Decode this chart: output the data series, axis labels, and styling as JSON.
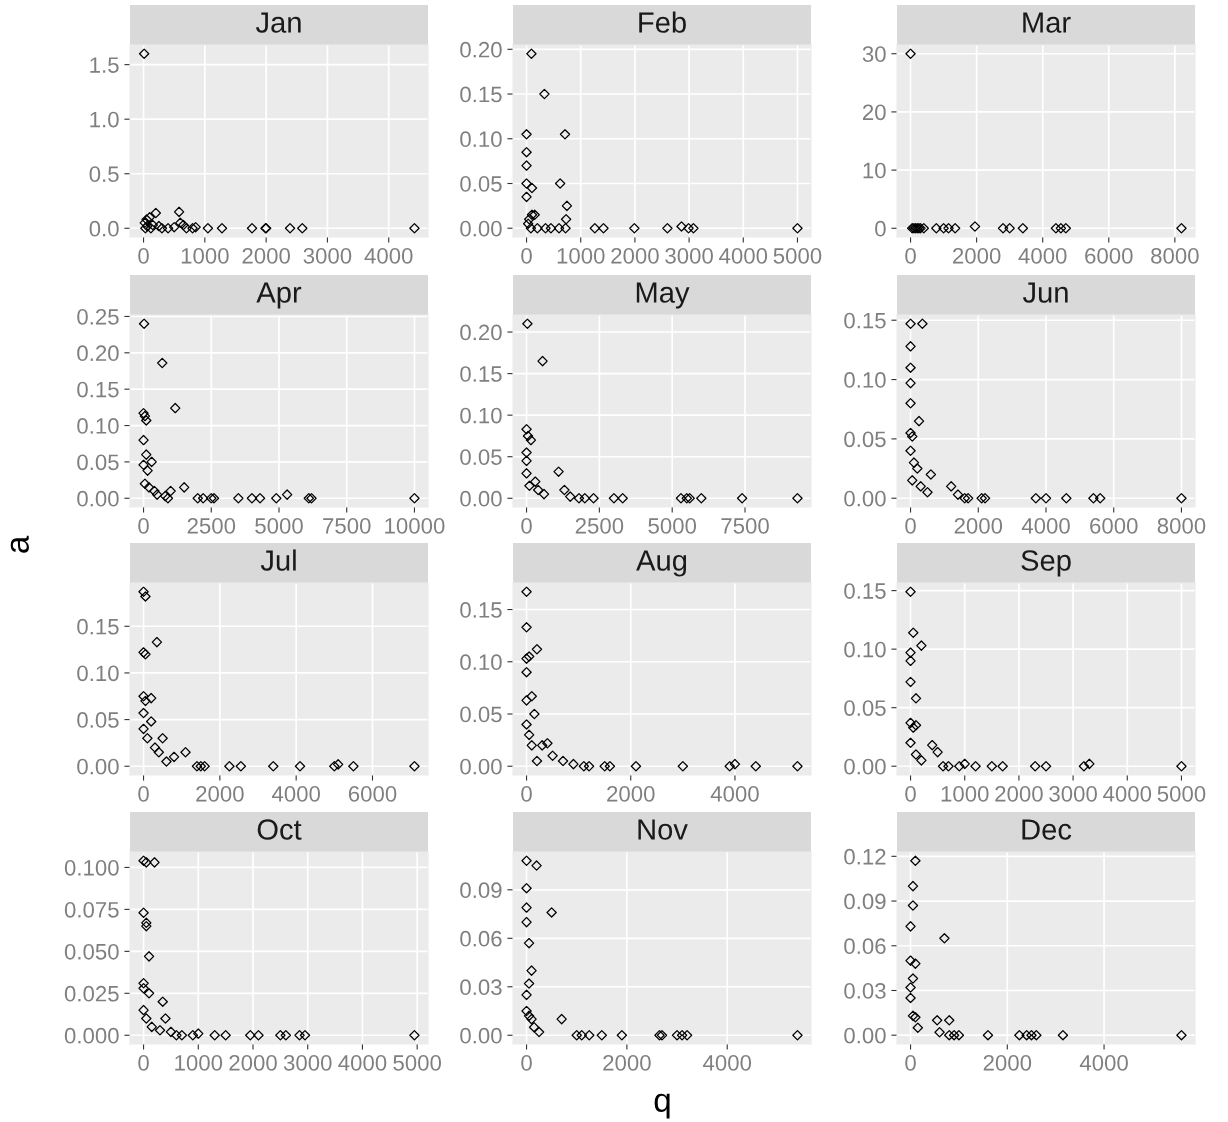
{
  "chart_data": [
    {
      "type": "scatter",
      "title": "Jan",
      "marker": "diamond",
      "color": "#000000",
      "grid": true,
      "xlim": [
        -221,
        4641
      ],
      "ylim": [
        -0.08,
        1.68
      ],
      "xticks": [
        0,
        1000,
        2000,
        3000,
        4000
      ],
      "yticks": [
        {
          "value": 0,
          "label": "0.0"
        },
        {
          "value": 0.5,
          "label": "0.5"
        },
        {
          "value": 1,
          "label": "1.0"
        },
        {
          "value": 1.5,
          "label": "1.5"
        }
      ],
      "x": [
        10,
        20,
        50,
        100,
        150,
        200,
        250,
        300,
        400,
        500,
        580,
        600,
        650,
        700,
        800,
        850,
        1050,
        1280,
        1770,
        1990,
        2000,
        2390,
        2590,
        4420,
        30,
        60,
        120
      ],
      "values": [
        1.6,
        0.05,
        0.08,
        0.1,
        0.03,
        0.14,
        0.02,
        0,
        0,
        0.01,
        0.15,
        0.05,
        0.03,
        0,
        0,
        0.01,
        0,
        0,
        0,
        0,
        0,
        0,
        0,
        0,
        0,
        0.02,
        0
      ]
    },
    {
      "type": "scatter",
      "title": "Feb",
      "marker": "diamond",
      "color": "#000000",
      "grid": true,
      "xlim": [
        -250,
        5250
      ],
      "ylim": [
        -0.0098,
        0.2048
      ],
      "xticks": [
        0,
        1000,
        2000,
        3000,
        4000,
        5000
      ],
      "yticks": [
        {
          "value": 0,
          "label": "0.00"
        },
        {
          "value": 0.05,
          "label": "0.05"
        },
        {
          "value": 0.1,
          "label": "0.10"
        },
        {
          "value": 0.15,
          "label": "0.15"
        },
        {
          "value": 0.2,
          "label": "0.20"
        }
      ],
      "x": [
        90,
        330,
        0,
        710,
        0,
        0,
        0,
        620,
        100,
        0,
        745,
        730,
        50,
        100,
        150,
        30,
        80,
        200,
        350,
        450,
        600,
        720,
        1260,
        1420,
        1990,
        2600,
        2860,
        2990,
        3080,
        5000
      ],
      "values": [
        0.195,
        0.15,
        0.105,
        0.105,
        0.085,
        0.07,
        0.05,
        0.05,
        0.045,
        0.035,
        0.025,
        0.01,
        0.01,
        0.015,
        0.015,
        0.005,
        0,
        0,
        0,
        0,
        0,
        0,
        0,
        0,
        0,
        0,
        0.002,
        0,
        0,
        0
      ]
    },
    {
      "type": "scatter",
      "title": "Mar",
      "marker": "diamond",
      "color": "#000000",
      "grid": true,
      "xlim": [
        -410,
        8610
      ],
      "ylim": [
        -1.5,
        31.5
      ],
      "xticks": [
        0,
        2000,
        4000,
        6000,
        8000
      ],
      "yticks": [
        0,
        10,
        20,
        30
      ],
      "x": [
        0,
        50,
        100,
        150,
        200,
        250,
        300,
        400,
        780,
        1000,
        1150,
        1350,
        1950,
        2800,
        3000,
        3400,
        4400,
        4550,
        4700,
        8200
      ],
      "values": [
        30,
        0,
        0,
        0,
        0,
        0,
        0,
        0,
        0,
        0,
        0,
        0,
        0.3,
        0,
        0,
        0,
        0,
        0,
        0,
        0
      ]
    },
    {
      "type": "scatter",
      "title": "Apr",
      "ylabel": "a",
      "marker": "diamond",
      "color": "#000000",
      "grid": true,
      "xlim": [
        -500,
        10500
      ],
      "ylim": [
        -0.012,
        0.252
      ],
      "xticks": [
        0,
        2500,
        5000,
        7500,
        10000
      ],
      "yticks": [
        {
          "value": 0,
          "label": "0.00"
        },
        {
          "value": 0.05,
          "label": "0.05"
        },
        {
          "value": 0.1,
          "label": "0.10"
        },
        {
          "value": 0.15,
          "label": "0.15"
        },
        {
          "value": 0.2,
          "label": "0.20"
        },
        {
          "value": 0.25,
          "label": "0.25"
        }
      ],
      "x": [
        20,
        690,
        1170,
        0,
        50,
        100,
        0,
        0,
        100,
        300,
        150,
        50,
        200,
        400,
        500,
        800,
        900,
        1000,
        1500,
        2000,
        2200,
        2500,
        2600,
        3500,
        4000,
        4300,
        4900,
        5300,
        6100,
        6200,
        10000
      ],
      "values": [
        0.24,
        0.186,
        0.124,
        0.117,
        0.113,
        0.107,
        0.08,
        0.046,
        0.06,
        0.05,
        0.038,
        0.02,
        0.015,
        0.01,
        0.005,
        0.003,
        0,
        0.01,
        0.015,
        0,
        0,
        0,
        0,
        0,
        0,
        0,
        0,
        0.005,
        0,
        0,
        0
      ]
    },
    {
      "type": "scatter",
      "title": "May",
      "marker": "diamond",
      "color": "#000000",
      "grid": true,
      "xlim": [
        -465,
        9765
      ],
      "ylim": [
        -0.0105,
        0.2205
      ],
      "xticks": [
        0,
        2500,
        5000,
        7500
      ],
      "yticks": [
        {
          "value": 0,
          "label": "0.00"
        },
        {
          "value": 0.05,
          "label": "0.05"
        },
        {
          "value": 0.1,
          "label": "0.10"
        },
        {
          "value": 0.15,
          "label": "0.15"
        },
        {
          "value": 0.2,
          "label": "0.20"
        }
      ],
      "x": [
        30,
        550,
        0,
        50,
        150,
        0,
        0,
        0,
        1100,
        300,
        100,
        400,
        600,
        1300,
        1500,
        1800,
        2000,
        2300,
        3000,
        3300,
        5300,
        5500,
        5600,
        6000,
        7400,
        9300
      ],
      "values": [
        0.21,
        0.165,
        0.083,
        0.075,
        0.07,
        0.055,
        0.045,
        0.03,
        0.032,
        0.02,
        0.015,
        0.01,
        0.005,
        0.01,
        0.002,
        0,
        0,
        0,
        0,
        0,
        0,
        0,
        0,
        0,
        0,
        0
      ]
    },
    {
      "type": "scatter",
      "title": "Jun",
      "marker": "diamond",
      "color": "#000000",
      "grid": true,
      "xlim": [
        -400,
        8400
      ],
      "ylim": [
        -0.0074,
        0.1544
      ],
      "xticks": [
        0,
        2000,
        4000,
        6000,
        8000
      ],
      "yticks": [
        {
          "value": 0,
          "label": "0.00"
        },
        {
          "value": 0.05,
          "label": "0.05"
        },
        {
          "value": 0.1,
          "label": "0.10"
        },
        {
          "value": 0.15,
          "label": "0.15"
        }
      ],
      "x": [
        0,
        350,
        0,
        0,
        0,
        0,
        0,
        50,
        250,
        0,
        100,
        200,
        50,
        600,
        300,
        500,
        1200,
        1400,
        1600,
        1700,
        2100,
        2200,
        3700,
        4000,
        4600,
        5400,
        5600,
        8000
      ],
      "values": [
        0.147,
        0.147,
        0.128,
        0.11,
        0.097,
        0.08,
        0.055,
        0.052,
        0.065,
        0.04,
        0.03,
        0.025,
        0.015,
        0.02,
        0.01,
        0.005,
        0.01,
        0.003,
        0,
        0,
        0,
        0,
        0,
        0,
        0,
        0,
        0,
        0
      ]
    },
    {
      "type": "scatter",
      "title": "Jul",
      "marker": "diamond",
      "color": "#000000",
      "grid": true,
      "xlim": [
        -355,
        7455
      ],
      "ylim": [
        -0.0094,
        0.1964
      ],
      "xticks": [
        0,
        2000,
        4000,
        6000
      ],
      "yticks": [
        {
          "value": 0,
          "label": "0.00"
        },
        {
          "value": 0.05,
          "label": "0.05"
        },
        {
          "value": 0.1,
          "label": "0.10"
        },
        {
          "value": 0.15,
          "label": "0.15"
        }
      ],
      "x": [
        0,
        50,
        0,
        50,
        350,
        0,
        50,
        200,
        0,
        0,
        200,
        100,
        300,
        500,
        400,
        600,
        800,
        1100,
        1400,
        1500,
        1600,
        2250,
        2550,
        3400,
        4100,
        5000,
        5100,
        5500,
        7100
      ],
      "values": [
        0.187,
        0.182,
        0.122,
        0.12,
        0.133,
        0.075,
        0.07,
        0.073,
        0.057,
        0.04,
        0.048,
        0.03,
        0.02,
        0.03,
        0.015,
        0.005,
        0.01,
        0.015,
        0,
        0,
        0,
        0,
        0,
        0,
        0,
        0,
        0.002,
        0,
        0
      ]
    },
    {
      "type": "scatter",
      "title": "Aug",
      "marker": "diamond",
      "color": "#000000",
      "grid": true,
      "xlim": [
        -260,
        5460
      ],
      "ylim": [
        -0.0084,
        0.1754
      ],
      "xticks": [
        0,
        2000,
        4000
      ],
      "yticks": [
        {
          "value": 0,
          "label": "0.00"
        },
        {
          "value": 0.05,
          "label": "0.05"
        },
        {
          "value": 0.1,
          "label": "0.10"
        },
        {
          "value": 0.15,
          "label": "0.15"
        }
      ],
      "x": [
        0,
        0,
        0,
        0,
        200,
        50,
        0,
        100,
        150,
        0,
        50,
        100,
        300,
        400,
        500,
        200,
        700,
        900,
        1100,
        1200,
        1500,
        1600,
        2100,
        3000,
        3900,
        4000,
        4400,
        5200
      ],
      "values": [
        0.167,
        0.133,
        0.103,
        0.09,
        0.112,
        0.105,
        0.063,
        0.067,
        0.05,
        0.04,
        0.03,
        0.02,
        0.02,
        0.022,
        0.01,
        0.005,
        0.005,
        0.002,
        0,
        0,
        0,
        0,
        0,
        0,
        0,
        0.002,
        0,
        0
      ]
    },
    {
      "type": "scatter",
      "title": "Sep",
      "marker": "diamond",
      "color": "#000000",
      "grid": true,
      "xlim": [
        -250,
        5250
      ],
      "ylim": [
        -0.0075,
        0.1565
      ],
      "xticks": [
        0,
        1000,
        2000,
        3000,
        4000,
        5000
      ],
      "yticks": [
        {
          "value": 0,
          "label": "0.00"
        },
        {
          "value": 0.05,
          "label": "0.05"
        },
        {
          "value": 0.1,
          "label": "0.10"
        },
        {
          "value": 0.15,
          "label": "0.15"
        }
      ],
      "x": [
        0,
        50,
        200,
        0,
        0,
        0,
        100,
        0,
        50,
        100,
        0,
        100,
        200,
        400,
        500,
        600,
        700,
        900,
        1000,
        1200,
        1500,
        1700,
        2300,
        2500,
        3200,
        3300,
        5000
      ],
      "values": [
        0.149,
        0.114,
        0.103,
        0.097,
        0.09,
        0.072,
        0.058,
        0.037,
        0.033,
        0.035,
        0.02,
        0.01,
        0.005,
        0.018,
        0.012,
        0,
        0,
        0,
        0.002,
        0,
        0,
        0,
        0,
        0,
        0,
        0.002,
        0
      ]
    },
    {
      "type": "scatter",
      "title": "Oct",
      "marker": "diamond",
      "color": "#000000",
      "grid": true,
      "xlim": [
        -248,
        5198
      ],
      "ylim": [
        -0.0052,
        0.1092
      ],
      "xticks": [
        0,
        1000,
        2000,
        3000,
        4000,
        5000
      ],
      "yticks": [
        {
          "value": 0,
          "label": "0.000"
        },
        {
          "value": 0.025,
          "label": "0.025"
        },
        {
          "value": 0.05,
          "label": "0.050"
        },
        {
          "value": 0.075,
          "label": "0.075"
        },
        {
          "value": 0.1,
          "label": "0.100"
        }
      ],
      "x": [
        0,
        50,
        200,
        0,
        50,
        50,
        100,
        0,
        0,
        100,
        0,
        50,
        150,
        350,
        400,
        300,
        500,
        600,
        700,
        900,
        1000,
        1300,
        1500,
        1950,
        2100,
        2500,
        2600,
        2850,
        2950,
        4950
      ],
      "values": [
        0.104,
        0.103,
        0.103,
        0.073,
        0.067,
        0.065,
        0.047,
        0.031,
        0.028,
        0.025,
        0.015,
        0.01,
        0.005,
        0.02,
        0.01,
        0.003,
        0.002,
        0,
        0,
        0,
        0.001,
        0,
        0,
        0,
        0,
        0,
        0,
        0,
        0,
        0
      ]
    },
    {
      "type": "scatter",
      "title": "Nov",
      "xlabel": "q",
      "marker": "diamond",
      "color": "#000000",
      "grid": true,
      "xlim": [
        -270,
        5670
      ],
      "ylim": [
        -0.0054,
        0.1134
      ],
      "xticks": [
        0,
        2000,
        4000
      ],
      "yticks": [
        {
          "value": 0,
          "label": "0.00"
        },
        {
          "value": 0.03,
          "label": "0.03"
        },
        {
          "value": 0.06,
          "label": "0.06"
        },
        {
          "value": 0.09,
          "label": "0.09"
        }
      ],
      "x": [
        0,
        200,
        0,
        0,
        500,
        0,
        50,
        100,
        50,
        0,
        0,
        50,
        100,
        150,
        250,
        700,
        1000,
        1100,
        1250,
        1500,
        1900,
        2650,
        2700,
        3000,
        3100,
        3200,
        5400
      ],
      "values": [
        0.108,
        0.105,
        0.091,
        0.079,
        0.076,
        0.07,
        0.057,
        0.04,
        0.032,
        0.025,
        0.015,
        0.012,
        0.01,
        0.005,
        0.002,
        0.01,
        0,
        0,
        0,
        0,
        0,
        0,
        0,
        0,
        0,
        0,
        0
      ]
    },
    {
      "type": "scatter",
      "title": "Dec",
      "marker": "diamond",
      "color": "#000000",
      "grid": true,
      "xlim": [
        -280,
        5880
      ],
      "ylim": [
        -0.0059,
        0.1229
      ],
      "xticks": [
        0,
        2000,
        4000
      ],
      "yticks": [
        {
          "value": 0,
          "label": "0.00"
        },
        {
          "value": 0.03,
          "label": "0.03"
        },
        {
          "value": 0.06,
          "label": "0.06"
        },
        {
          "value": 0.09,
          "label": "0.09"
        },
        {
          "value": 0.12,
          "label": "0.12"
        }
      ],
      "x": [
        100,
        50,
        50,
        0,
        0,
        100,
        50,
        0,
        0,
        50,
        100,
        150,
        700,
        550,
        800,
        600,
        800,
        900,
        1000,
        1600,
        2250,
        2400,
        2500,
        2600,
        3150,
        5600
      ],
      "values": [
        0.117,
        0.1,
        0.087,
        0.073,
        0.05,
        0.048,
        0.038,
        0.032,
        0.025,
        0.013,
        0.012,
        0.005,
        0.065,
        0.01,
        0.01,
        0.002,
        0,
        0,
        0,
        0,
        0,
        0,
        0,
        0,
        0,
        0
      ]
    }
  ]
}
